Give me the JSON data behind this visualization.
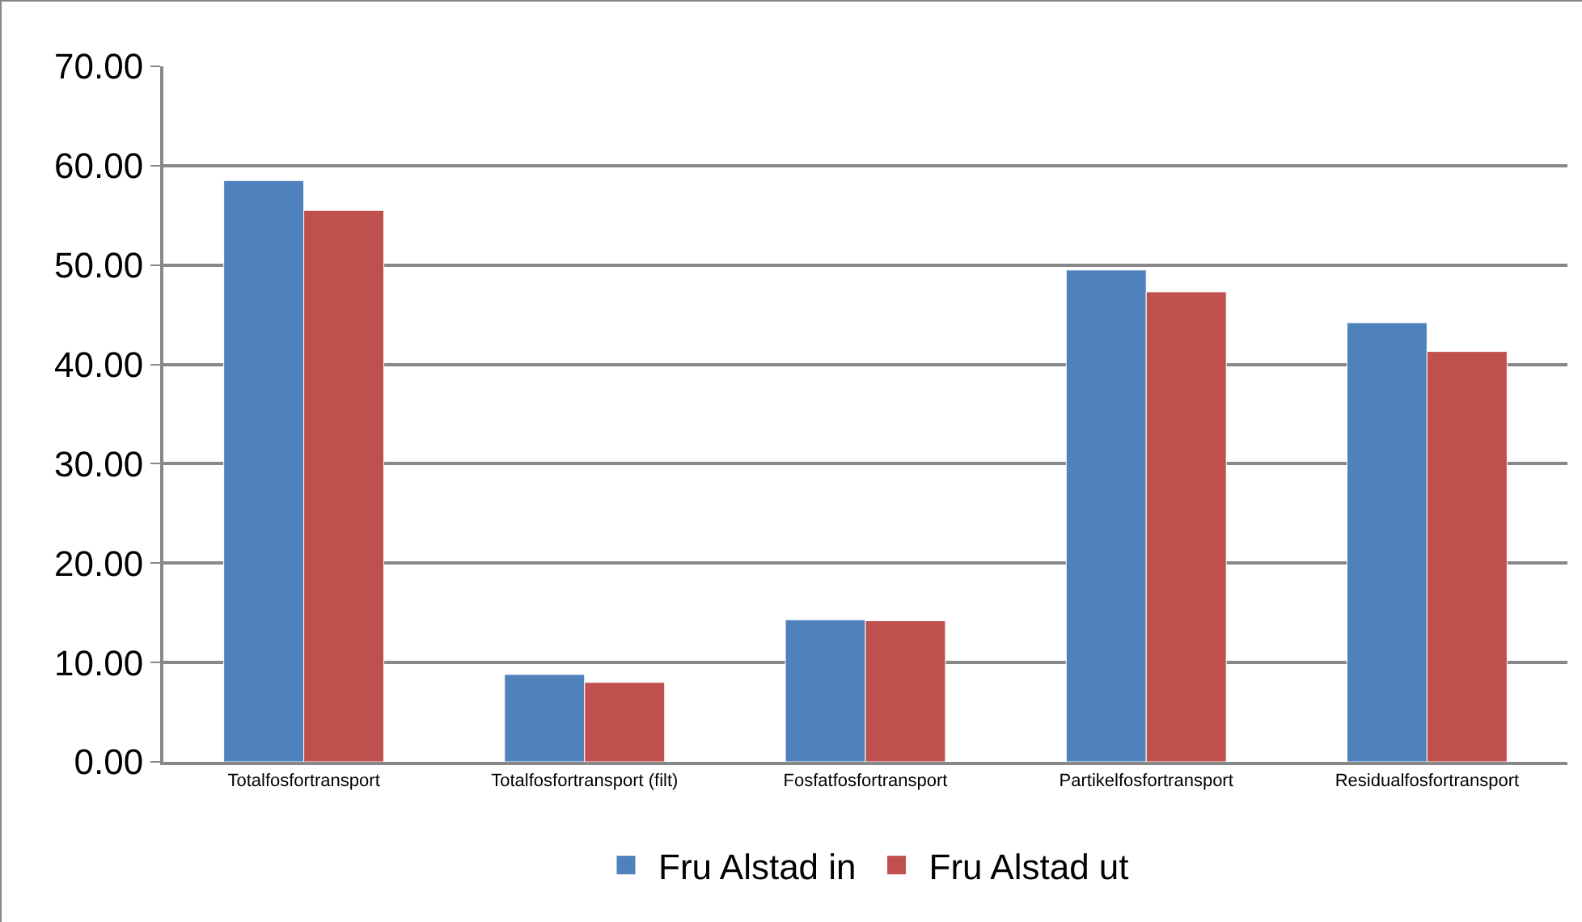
{
  "chart_data": {
    "type": "bar",
    "categories": [
      "Totalfosfortransport",
      "Totalfosfortransport (filt)",
      "Fosfatfosfortransport",
      "Partikelfosfortransport",
      "Residualfosfortransport"
    ],
    "series": [
      {
        "name": "Fru Alstad in",
        "color": "#4f81bd",
        "values": [
          58.5,
          8.8,
          14.3,
          49.5,
          44.2
        ]
      },
      {
        "name": "Fru Alstad ut",
        "color": "#c0504d",
        "values": [
          55.5,
          8.0,
          14.2,
          47.3,
          41.3
        ]
      }
    ],
    "ylim": [
      0,
      70
    ],
    "yticks": [
      {
        "value": 0,
        "label": "0.00"
      },
      {
        "value": 10,
        "label": "10.00"
      },
      {
        "value": 20,
        "label": "20.00"
      },
      {
        "value": 30,
        "label": "30.00"
      },
      {
        "value": 40,
        "label": "40.00"
      },
      {
        "value": 50,
        "label": "50.00"
      },
      {
        "value": 60,
        "label": "60.00"
      },
      {
        "value": 70,
        "label": "70.00"
      }
    ],
    "grid": "y",
    "legend": "bottom"
  }
}
